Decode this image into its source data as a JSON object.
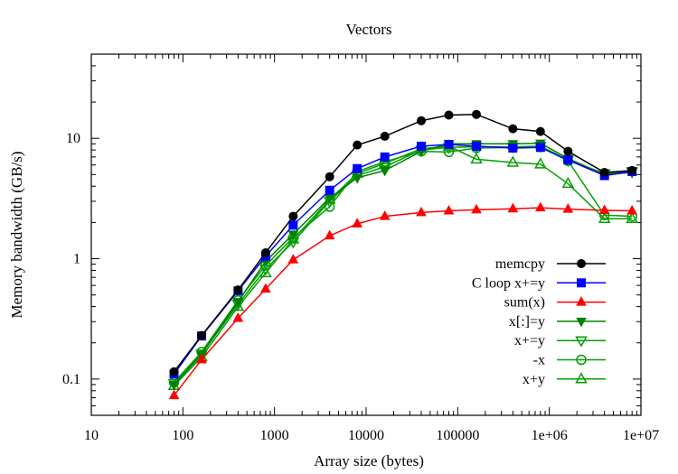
{
  "chart_data": {
    "type": "line",
    "title": "Vectors",
    "xlabel": "Array size (bytes)",
    "ylabel": "Memory bandwidth (GB/s)",
    "x_scale": "log",
    "y_scale": "log",
    "xlim": [
      10,
      10000000
    ],
    "ylim": [
      0.05,
      50
    ],
    "x_ticks": [
      {
        "value": 10,
        "label": "10"
      },
      {
        "value": 100,
        "label": "100"
      },
      {
        "value": 1000,
        "label": "1000"
      },
      {
        "value": 10000,
        "label": "10000"
      },
      {
        "value": 100000,
        "label": "100000"
      },
      {
        "value": 1000000,
        "label": "1e+06"
      },
      {
        "value": 10000000,
        "label": "1e+07"
      }
    ],
    "y_ticks": [
      {
        "value": 0.1,
        "label": "0.1"
      },
      {
        "value": 1,
        "label": "1"
      },
      {
        "value": 10,
        "label": "10"
      }
    ],
    "grid": false,
    "legend_position": "bottom-right",
    "x": [
      80,
      160,
      400,
      800,
      1600,
      4000,
      8000,
      16000,
      40000,
      80000,
      160000,
      400000,
      800000,
      1600000,
      4000000,
      8000000
    ],
    "series": [
      {
        "name": "memcpy",
        "color": "#000000",
        "marker": "circle-filled",
        "values": [
          0.115,
          0.23,
          0.55,
          1.12,
          2.25,
          4.8,
          8.8,
          10.4,
          14.0,
          15.6,
          15.8,
          12.0,
          11.4,
          7.8,
          5.2,
          5.4
        ]
      },
      {
        "name": "C loop x+=y",
        "color": "#0000ff",
        "marker": "square-filled",
        "values": [
          0.11,
          0.228,
          0.54,
          1.05,
          1.9,
          3.7,
          5.6,
          7.0,
          8.6,
          8.9,
          8.6,
          8.3,
          8.4,
          6.6,
          4.9,
          5.3
        ]
      },
      {
        "name": "sum(x)",
        "color": "#ff0000",
        "marker": "triangle-up-filled",
        "values": [
          0.073,
          0.145,
          0.32,
          0.56,
          0.98,
          1.55,
          1.95,
          2.25,
          2.42,
          2.5,
          2.55,
          2.6,
          2.65,
          2.58,
          2.52,
          2.5
        ]
      },
      {
        "name": "x[:]=y",
        "color": "#008000",
        "marker": "triangle-down-filled",
        "values": [
          0.09,
          0.16,
          0.44,
          0.95,
          1.6,
          3.2,
          4.7,
          5.4,
          7.8,
          9.0,
          9.0,
          9.0,
          9.1,
          6.8,
          5.0,
          5.2
        ]
      },
      {
        "name": "x+=y",
        "color": "#00a000",
        "marker": "triangle-down-open",
        "values": [
          0.092,
          0.162,
          0.42,
          0.82,
          1.38,
          3.0,
          4.9,
          5.8,
          8.0,
          8.4,
          8.5,
          8.5,
          8.6,
          6.6,
          5.1,
          5.3
        ]
      },
      {
        "name": "-x",
        "color": "#00a000",
        "marker": "circle-open",
        "values": [
          0.094,
          0.168,
          0.45,
          0.88,
          1.5,
          2.7,
          5.3,
          6.4,
          7.8,
          7.7,
          8.3,
          8.4,
          8.5,
          6.5,
          2.3,
          2.25
        ]
      },
      {
        "name": "x+y",
        "color": "#00a000",
        "marker": "triangle-up-open",
        "values": [
          0.088,
          0.152,
          0.4,
          0.76,
          1.45,
          3.1,
          5.1,
          6.2,
          8.2,
          8.6,
          6.7,
          6.3,
          6.1,
          4.2,
          2.15,
          2.15
        ]
      }
    ]
  }
}
